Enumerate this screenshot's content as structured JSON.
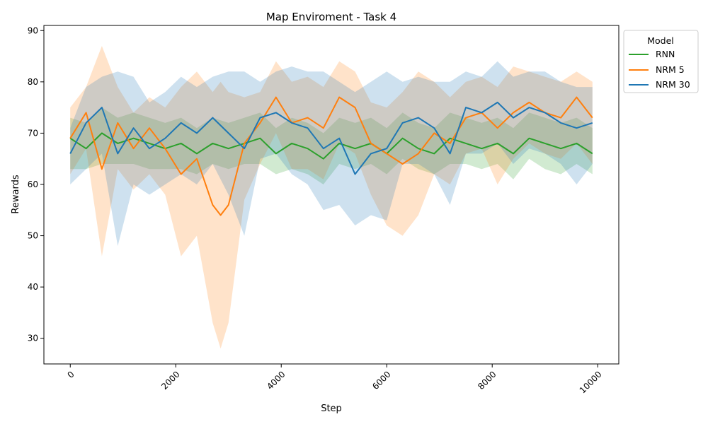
{
  "chart_data": {
    "type": "line",
    "title": "Map Enviroment - Task 4",
    "xlabel": "Step",
    "ylabel": "Rewards",
    "xlim": [
      -500,
      10400
    ],
    "ylim": [
      25,
      91
    ],
    "xticks": [
      0,
      2000,
      4000,
      6000,
      8000,
      10000
    ],
    "yticks": [
      30,
      40,
      50,
      60,
      70,
      80,
      90
    ],
    "grid": false,
    "legend": {
      "title": "Model",
      "placement": "outside top-right"
    },
    "series": [
      {
        "name": "RNN",
        "color": "#2ca02c",
        "x": [
          0,
          300,
          600,
          900,
          1200,
          1500,
          1800,
          2100,
          2400,
          2700,
          3000,
          3300,
          3600,
          3900,
          4200,
          4500,
          4800,
          5100,
          5400,
          5700,
          6000,
          6300,
          6600,
          6900,
          7200,
          7500,
          7800,
          8100,
          8400,
          8700,
          9000,
          9300,
          9600,
          9900
        ],
        "values": [
          69,
          67,
          70,
          68,
          69,
          68,
          67,
          68,
          66,
          68,
          67,
          68,
          69,
          66,
          68,
          67,
          65,
          68,
          67,
          68,
          66,
          69,
          67,
          66,
          69,
          68,
          67,
          68,
          66,
          69,
          68,
          67,
          68,
          66
        ],
        "band_low": [
          63,
          63,
          64,
          64,
          64,
          63,
          63,
          63,
          62,
          64,
          63,
          64,
          64,
          62,
          63,
          62,
          60,
          64,
          63,
          64,
          62,
          65,
          63,
          62,
          64,
          64,
          63,
          64,
          61,
          65,
          63,
          62,
          64,
          62
        ],
        "band_high": [
          73,
          72,
          75,
          73,
          74,
          73,
          72,
          73,
          71,
          73,
          72,
          73,
          74,
          71,
          73,
          72,
          70,
          73,
          72,
          73,
          71,
          74,
          72,
          71,
          74,
          73,
          72,
          73,
          71,
          74,
          73,
          72,
          73,
          71
        ]
      },
      {
        "name": "NRM 5",
        "color": "#ff7f0e",
        "x": [
          0,
          300,
          600,
          900,
          1200,
          1500,
          1800,
          2100,
          2400,
          2700,
          2850,
          3000,
          3300,
          3600,
          3900,
          4200,
          4500,
          4800,
          5100,
          5400,
          5700,
          6000,
          6300,
          6600,
          6900,
          7200,
          7500,
          7800,
          8100,
          8400,
          8700,
          9000,
          9300,
          9600,
          9900
        ],
        "values": [
          69,
          74,
          63,
          72,
          67,
          71,
          67,
          62,
          65,
          56,
          54,
          56,
          68,
          72,
          77,
          72,
          73,
          71,
          77,
          75,
          68,
          66,
          64,
          66,
          70,
          68,
          73,
          74,
          71,
          74,
          76,
          74,
          73,
          77,
          73
        ],
        "band_low": [
          62,
          67,
          46,
          63,
          59,
          62,
          58,
          46,
          50,
          33,
          28,
          33,
          57,
          64,
          70,
          63,
          63,
          61,
          68,
          66,
          58,
          52,
          50,
          54,
          62,
          60,
          66,
          67,
          60,
          65,
          68,
          66,
          65,
          68,
          64
        ],
        "band_high": [
          75,
          79,
          87,
          79,
          74,
          77,
          75,
          79,
          82,
          78,
          80,
          78,
          77,
          78,
          84,
          80,
          81,
          79,
          84,
          82,
          76,
          75,
          78,
          82,
          80,
          77,
          80,
          81,
          79,
          83,
          82,
          81,
          80,
          82,
          80
        ]
      },
      {
        "name": "NRM 30",
        "color": "#1f77b4",
        "x": [
          0,
          300,
          600,
          900,
          1200,
          1500,
          1800,
          2100,
          2400,
          2700,
          3000,
          3300,
          3600,
          3900,
          4200,
          4500,
          4800,
          5100,
          5400,
          5700,
          6000,
          6300,
          6600,
          6900,
          7200,
          7500,
          7800,
          8100,
          8400,
          8700,
          9000,
          9300,
          9600,
          9900
        ],
        "values": [
          66,
          72,
          75,
          66,
          71,
          67,
          69,
          72,
          70,
          73,
          70,
          67,
          73,
          74,
          72,
          71,
          67,
          69,
          62,
          66,
          67,
          72,
          73,
          71,
          66,
          75,
          74,
          76,
          73,
          75,
          74,
          72,
          71,
          72
        ],
        "band_low": [
          60,
          63,
          66,
          48,
          60,
          58,
          60,
          62,
          60,
          64,
          58,
          50,
          65,
          66,
          62,
          60,
          55,
          56,
          52,
          54,
          53,
          64,
          64,
          62,
          56,
          66,
          66,
          68,
          64,
          67,
          66,
          64,
          60,
          64
        ],
        "band_high": [
          71,
          79,
          81,
          82,
          81,
          76,
          78,
          81,
          79,
          81,
          82,
          82,
          80,
          82,
          83,
          82,
          82,
          80,
          78,
          80,
          82,
          80,
          81,
          80,
          80,
          82,
          81,
          84,
          81,
          82,
          82,
          80,
          79,
          79
        ]
      }
    ]
  }
}
